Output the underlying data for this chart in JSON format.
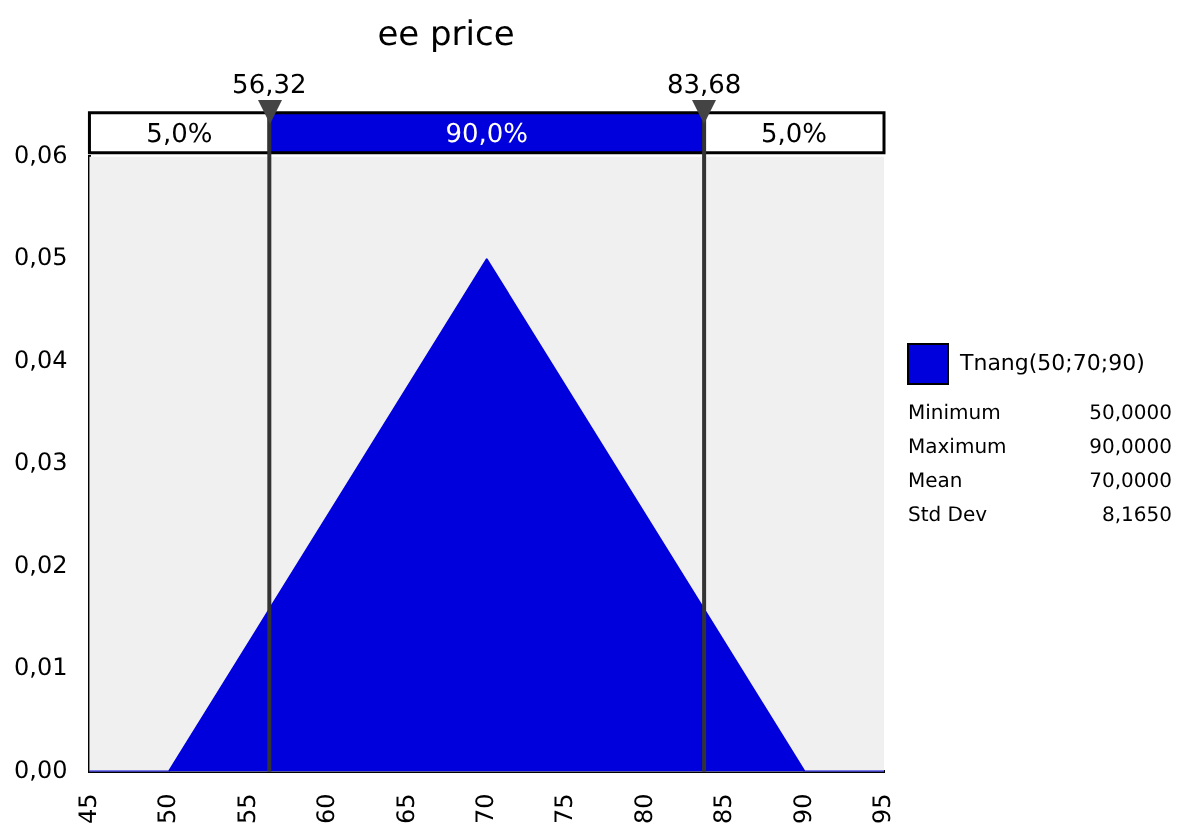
{
  "chart_data": {
    "type": "area",
    "title": "ee price",
    "x": [
      45,
      50,
      56.32,
      70,
      83.68,
      90,
      95
    ],
    "series": [
      {
        "name": "Tnang(50;70;90)",
        "color": "#0000dd",
        "values": [
          0,
          0,
          0.0158,
          0.05,
          0.0158,
          0,
          0
        ]
      }
    ],
    "xlim": [
      45,
      95
    ],
    "xticks": [
      45,
      50,
      55,
      60,
      65,
      70,
      75,
      80,
      85,
      90,
      95
    ],
    "ylim": [
      0,
      0.06
    ],
    "yticks": [
      {
        "value": 0,
        "label": "0,00"
      },
      {
        "value": 0.01,
        "label": "0,01"
      },
      {
        "value": 0.02,
        "label": "0,02"
      },
      {
        "value": 0.03,
        "label": "0,03"
      },
      {
        "value": 0.04,
        "label": "0,04"
      },
      {
        "value": 0.05,
        "label": "0,05"
      },
      {
        "value": 0.06,
        "label": "0,06"
      }
    ],
    "ref_lines": [
      {
        "axis": "x",
        "value": 56.32,
        "label": "56,32",
        "color": "#333333"
      },
      {
        "axis": "x",
        "value": 83.68,
        "label": "83,68",
        "color": "#333333"
      }
    ],
    "annotations": [
      "5,0%",
      "90,0%",
      "5,0%",
      "Minimum",
      "50,0000",
      "Maximum",
      "90,0000",
      "Mean",
      "70,0000",
      "Std Dev",
      "8,1650"
    ],
    "legend": "right",
    "grid": false
  }
}
